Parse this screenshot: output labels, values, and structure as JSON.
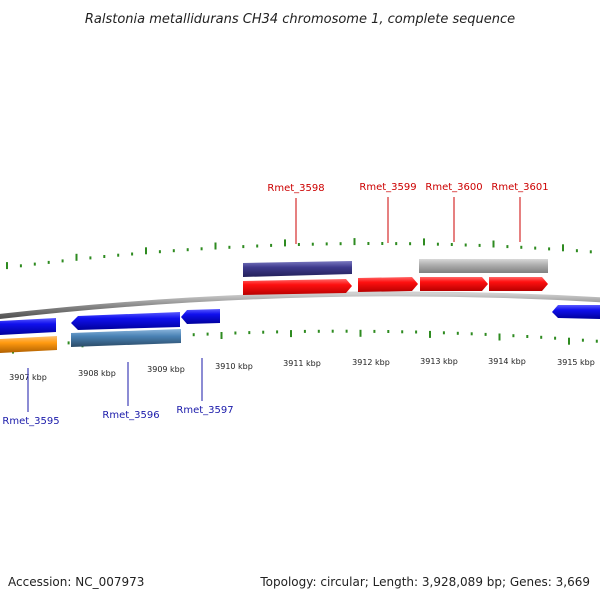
{
  "title": "Ralstonia metallidurans CH34 chromosome 1, complete sequence",
  "footer": {
    "accession": "Accession: NC_007973",
    "summary": "Topology: circular; Length: 3,928,089 bp; Genes: 3,669"
  },
  "colors": {
    "backbone": "#7a7a7a",
    "tick": "#2e8b20",
    "label_top": "#cc0000",
    "label_bottom": "#1a1aaa"
  },
  "kbp_labels": [
    "3907 kbp",
    "3908 kbp",
    "3909 kbp",
    "3910 kbp",
    "3911 kbp",
    "3912 kbp",
    "3913 kbp",
    "3914 kbp",
    "3915 kbp"
  ],
  "gene_labels_top": [
    "Rmet_3598",
    "Rmet_3599",
    "Rmet_3600",
    "Rmet_3601"
  ],
  "gene_labels_bottom": [
    "Rmet_3595",
    "Rmet_3596",
    "Rmet_3597"
  ]
}
